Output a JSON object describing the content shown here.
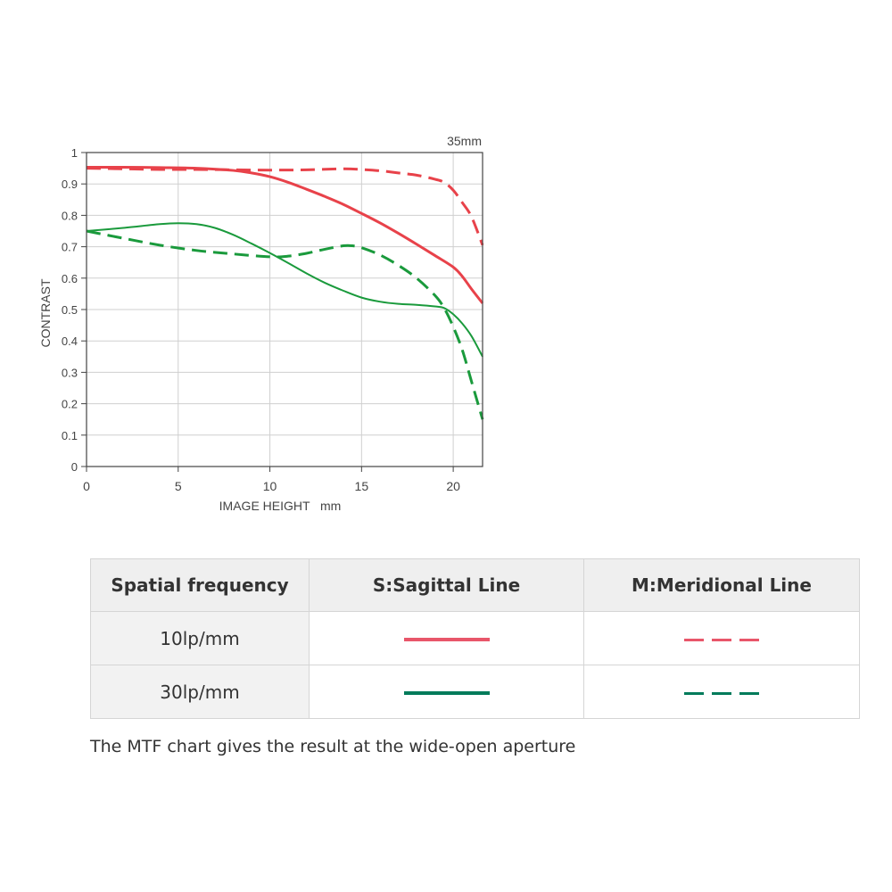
{
  "chart_data": {
    "type": "line",
    "title": "35mm",
    "xlabel": "IMAGE HEIGHT   mm",
    "ylabel": "CONTRAST",
    "xlim": [
      0,
      21.6
    ],
    "ylim": [
      0,
      1
    ],
    "xticks": [
      0,
      5,
      10,
      15,
      20
    ],
    "xtick_labels": [
      "0",
      "5",
      "10",
      "15",
      "20"
    ],
    "yticks": [
      0,
      0.1,
      0.2,
      0.3,
      0.4,
      0.5,
      0.6,
      0.7,
      0.8,
      0.9,
      1
    ],
    "ytick_labels": [
      "0",
      "0.1",
      "0.2",
      "0.3",
      "0.4",
      "0.5",
      "0.6",
      "0.7",
      "0.8",
      "0.9",
      "1"
    ],
    "grid": true,
    "series": [
      {
        "name": "10lp/mm S:Sagittal Line",
        "color": "#e8424a",
        "dash": "solid",
        "width": 3,
        "x": [
          0,
          2,
          4,
          6,
          8,
          9,
          10,
          11,
          12,
          13,
          14,
          15,
          16,
          17,
          18,
          19,
          20,
          20.5,
          21,
          21.6
        ],
        "y": [
          0.953,
          0.953,
          0.952,
          0.95,
          0.943,
          0.935,
          0.923,
          0.905,
          0.883,
          0.86,
          0.835,
          0.806,
          0.776,
          0.743,
          0.708,
          0.672,
          0.635,
          0.605,
          0.565,
          0.52
        ]
      },
      {
        "name": "10lp/mm M:Meridional Line",
        "color": "#e8424a",
        "dash": "dashed",
        "width": 3,
        "x": [
          0,
          2,
          4,
          6,
          8,
          10,
          12,
          14,
          15,
          16,
          17,
          18,
          19,
          19.5,
          20,
          20.5,
          21,
          21.6
        ],
        "y": [
          0.95,
          0.948,
          0.946,
          0.946,
          0.945,
          0.944,
          0.945,
          0.948,
          0.946,
          0.942,
          0.935,
          0.928,
          0.915,
          0.905,
          0.88,
          0.84,
          0.795,
          0.705
        ]
      },
      {
        "name": "30lp/mm S:Sagittal Line",
        "color": "#1a9a3c",
        "dash": "solid",
        "width": 2,
        "x": [
          0,
          2,
          4,
          5,
          6,
          7,
          8,
          9,
          10,
          11,
          12,
          13,
          14,
          15,
          16,
          17,
          18,
          19,
          19.5,
          20,
          20.5,
          21,
          21.6
        ],
        "y": [
          0.75,
          0.76,
          0.772,
          0.775,
          0.772,
          0.76,
          0.738,
          0.71,
          0.68,
          0.648,
          0.615,
          0.585,
          0.56,
          0.538,
          0.525,
          0.518,
          0.515,
          0.51,
          0.505,
          0.485,
          0.455,
          0.415,
          0.35
        ]
      },
      {
        "name": "30lp/mm M:Meridional Line",
        "color": "#1a9a3c",
        "dash": "dashed",
        "width": 3,
        "x": [
          0,
          2,
          4,
          6,
          8,
          10,
          11,
          12,
          13,
          14,
          14.5,
          15,
          16,
          17,
          18,
          19,
          19.5,
          20,
          20.5,
          21,
          21.6
        ],
        "y": [
          0.75,
          0.727,
          0.705,
          0.688,
          0.677,
          0.668,
          0.67,
          0.679,
          0.692,
          0.703,
          0.703,
          0.697,
          0.674,
          0.641,
          0.6,
          0.545,
          0.505,
          0.445,
          0.37,
          0.27,
          0.15
        ]
      }
    ]
  },
  "legend_table": {
    "headers": [
      "Spatial frequency",
      "S:Sagittal Line",
      "M:Meridional Line"
    ],
    "rows": [
      {
        "label": "10lp/mm",
        "color": "#e8566a"
      },
      {
        "label": "30lp/mm",
        "color": "#007b5a"
      }
    ]
  },
  "footnote": "The MTF chart gives the result at the wide-open aperture"
}
